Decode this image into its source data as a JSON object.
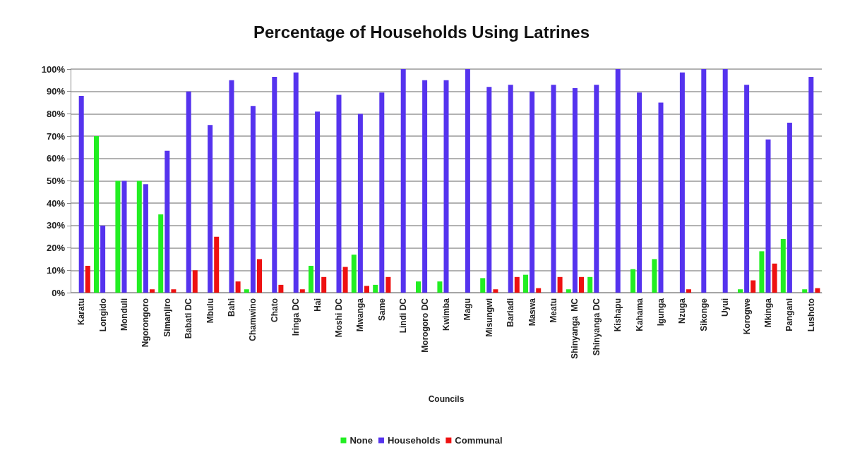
{
  "chart_data": {
    "type": "bar",
    "title": "Percentage of Households Using Latrines",
    "xlabel": "Councils",
    "categories": [
      "Karatu",
      "Longido",
      "Monduli",
      "Ngorongoro",
      "Simanjiro",
      "Babati DC",
      "Mbulu",
      "Bahi",
      "Chamwino",
      "Chato",
      "Iringa DC",
      "Hai",
      "Moshi DC",
      "Mwanga",
      "Same",
      "Lindi DC",
      "Morogoro DC",
      "Kwimba",
      "Magu",
      "Misungwi",
      "Bariadi",
      "Maswa",
      "Meatu",
      "Shinyanga  MC",
      "Shinyanga DC",
      "Kishapu",
      "Kahama",
      "Igunga",
      "Nzuga",
      "Sikonge",
      "Uyui",
      "Korogwe",
      "Mkinga",
      "Pangani",
      "Lushoto"
    ],
    "series": [
      {
        "name": "None",
        "color": "#22ee22",
        "values": [
          0,
          70,
          50,
          50,
          35,
          0,
          0,
          0,
          1.5,
          0,
          0,
          12,
          0,
          17,
          3.5,
          0,
          5,
          5,
          0,
          6.5,
          0,
          8,
          0,
          1.5,
          7,
          0,
          10.5,
          15,
          0,
          0,
          0,
          1.5,
          18.5,
          24,
          1.5
        ]
      },
      {
        "name": "Households",
        "color": "#5533ee",
        "values": [
          88,
          30,
          50,
          48.5,
          63.5,
          90,
          75,
          95,
          83.5,
          96.5,
          98.5,
          81,
          88.5,
          80,
          89.5,
          100,
          95,
          95,
          100,
          92,
          93,
          90,
          93,
          91.5,
          93,
          100,
          89.5,
          85,
          98.5,
          100,
          100,
          93,
          68.5,
          76,
          96.5
        ]
      },
      {
        "name": "Communal",
        "color": "#ee1111",
        "values": [
          12,
          0,
          0,
          1.5,
          1.5,
          10,
          25,
          5,
          15,
          3.5,
          1.5,
          7,
          11.5,
          3,
          7,
          0,
          0,
          0,
          0,
          1.5,
          7,
          2,
          7,
          7,
          0,
          0,
          0,
          0,
          1.5,
          0,
          0,
          5.5,
          13,
          0,
          2
        ]
      }
    ],
    "ylim": [
      0,
      100
    ],
    "yticks": [
      {
        "value": 0,
        "label": "0%"
      },
      {
        "value": 10,
        "label": "10%"
      },
      {
        "value": 20,
        "label": "20%"
      },
      {
        "value": 30,
        "label": "30%"
      },
      {
        "value": 40,
        "label": "40%"
      },
      {
        "value": 50,
        "label": "50%"
      },
      {
        "value": 60,
        "label": "60%"
      },
      {
        "value": 70,
        "label": "70%"
      },
      {
        "value": 80,
        "label": "80%"
      },
      {
        "value": 90,
        "label": "90%"
      },
      {
        "value": 100,
        "label": "100%"
      }
    ],
    "grid": "y",
    "legend": "bottom"
  }
}
